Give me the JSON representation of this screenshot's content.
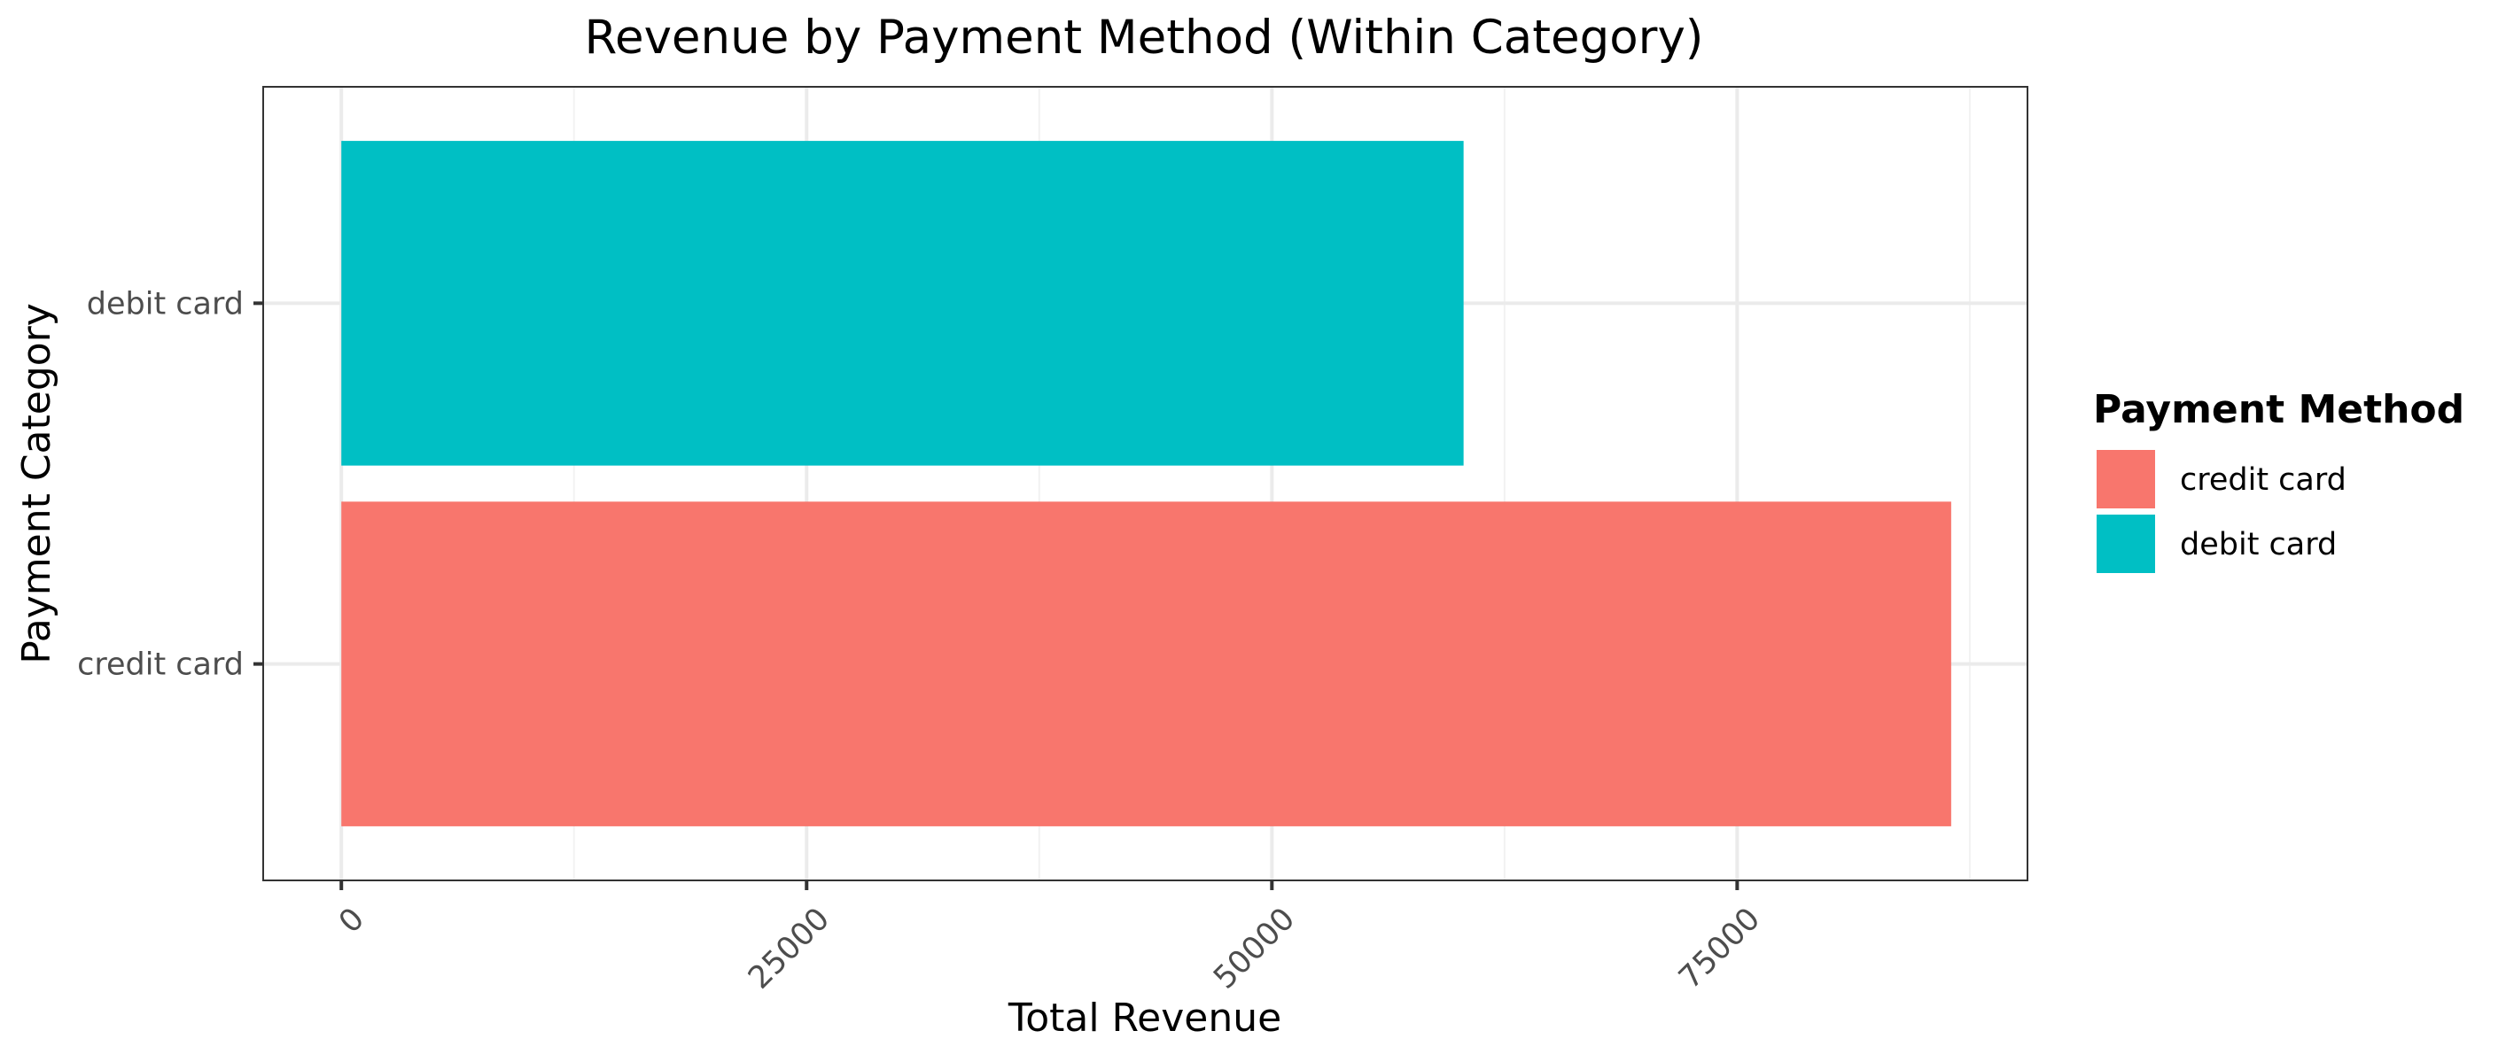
{
  "chart_data": {
    "type": "bar",
    "orientation": "horizontal",
    "title": "Revenue by Payment Method (Within Category)",
    "xlabel": "Total Revenue",
    "ylabel": "Payment Category",
    "categories": [
      "credit card",
      "debit card"
    ],
    "values": [
      86500,
      60300
    ],
    "colors": [
      "#F8766D",
      "#00BFC4"
    ],
    "xlim": [
      -4200,
      90600
    ],
    "xticks": [
      0,
      25000,
      50000,
      75000
    ],
    "xtick_labels": [
      "0",
      "25000",
      "50000",
      "75000"
    ],
    "xtick_label_rotation": -45,
    "grid": true,
    "legend": {
      "title": "Payment Method",
      "placement": "right",
      "entries": [
        {
          "label": "credit card",
          "color": "#F8766D"
        },
        {
          "label": "debit card",
          "color": "#00BFC4"
        }
      ]
    }
  }
}
